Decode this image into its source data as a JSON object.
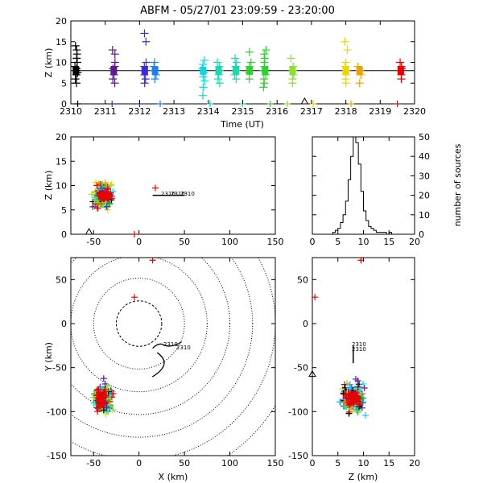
{
  "title": "ABFM - 05/27/01 23:09:59 - 23:20:00",
  "colors": {
    "rainbow": [
      "#000000",
      "#5a1a8c",
      "#3a2ad8",
      "#1e7ff0",
      "#11d6e0",
      "#18dcb0",
      "#2ad42a",
      "#8ce030",
      "#e8d800",
      "#f2a000",
      "#e80000"
    ]
  },
  "chart_data": [
    {
      "id": "timeseries",
      "type": "scatter",
      "xlabel": "Time (UT)",
      "ylabel": "Z (km)",
      "xlim": [
        2310,
        2320
      ],
      "ylim": [
        0,
        20
      ],
      "xticks": [
        "2310",
        "2311",
        "2312",
        "2313",
        "2314",
        "2315",
        "2316",
        "2317",
        "2318",
        "2319",
        "2320"
      ],
      "yticks": [
        "0",
        "5",
        "10",
        "15",
        "20"
      ],
      "reference_line_z": 8,
      "triangle_marker_time": 2316.8,
      "groups": [
        {
          "t": 2310.15,
          "z": [
            5,
            6,
            7,
            7.5,
            8,
            8.5,
            9,
            10,
            11,
            12,
            13,
            14
          ],
          "color_index": 0
        },
        {
          "t": 2311.25,
          "z": [
            5,
            6,
            7,
            8,
            8.5,
            9,
            10,
            12,
            13
          ],
          "color_index": 1
        },
        {
          "t": 2312.15,
          "z": [
            5,
            6,
            7,
            8,
            9,
            10,
            15,
            17
          ],
          "color_index": 2
        },
        {
          "t": 2312.45,
          "z": [
            6,
            7,
            8,
            9,
            10
          ],
          "color_index": 3
        },
        {
          "t": 2313.85,
          "z": [
            2,
            4,
            5.5,
            6.5,
            7.5,
            8.5,
            9.5,
            10.5
          ],
          "color_index": 4
        },
        {
          "t": 2314.3,
          "z": [
            5,
            6,
            7,
            8,
            9,
            10
          ],
          "color_index": 5
        },
        {
          "t": 2314.8,
          "z": [
            6,
            7,
            8,
            9,
            10,
            11
          ],
          "color_index": 5
        },
        {
          "t": 2315.2,
          "z": [
            6,
            7.5,
            9,
            10,
            12.5
          ],
          "color_index": 6
        },
        {
          "t": 2315.65,
          "z": [
            4,
            5,
            6,
            7,
            8,
            9,
            10,
            11,
            12,
            13
          ],
          "color_index": 6
        },
        {
          "t": 2316.45,
          "z": [
            5,
            6,
            7,
            8,
            9,
            11
          ],
          "color_index": 7
        },
        {
          "t": 2318.0,
          "z": [
            5,
            6,
            7,
            8,
            9,
            10,
            13,
            15
          ],
          "color_index": 8
        },
        {
          "t": 2318.4,
          "z": [
            5,
            7,
            8,
            9
          ],
          "color_index": 9
        },
        {
          "t": 2319.6,
          "z": [
            6,
            7,
            8,
            8.5,
            9,
            10
          ],
          "color_index": 10
        }
      ],
      "ground_markers": [
        {
          "t": 2310.2,
          "color_index": 0
        },
        {
          "t": 2311.2,
          "color_index": 1
        },
        {
          "t": 2312.0,
          "color_index": 2
        },
        {
          "t": 2312.6,
          "color_index": 3
        },
        {
          "t": 2314.05,
          "color_index": 4
        },
        {
          "t": 2315.0,
          "color_index": 5
        },
        {
          "t": 2315.8,
          "color_index": 6
        },
        {
          "t": 2316.3,
          "color_index": 7
        },
        {
          "t": 2317.05,
          "color_index": 8
        },
        {
          "t": 2318.15,
          "color_index": 9
        },
        {
          "t": 2319.5,
          "color_index": 10
        }
      ]
    },
    {
      "id": "xz",
      "type": "scatter",
      "ylabel": "Z (km)",
      "xlim": [
        -75,
        150
      ],
      "ylim": [
        0,
        20
      ],
      "xticks": [
        "-50",
        "0",
        "50",
        "100",
        "150"
      ],
      "yticks": [
        "0",
        "5",
        "10",
        "15",
        "20"
      ],
      "station_track_labels": [
        "2310",
        "2310",
        "2310"
      ],
      "station_track": [
        [
          15,
          8
        ],
        [
          50,
          8
        ]
      ],
      "isolated_points": [
        {
          "x": 18,
          "z": 9.5,
          "color_index": 10
        },
        {
          "x": -5,
          "z": 0,
          "color_index": 10
        }
      ],
      "triangle_marker_x": -55
    },
    {
      "id": "histogram",
      "type": "bar",
      "ylabel": "number of sources",
      "xlim": [
        0,
        20
      ],
      "ylim": [
        0,
        50
      ],
      "xticks": [
        "0",
        "5",
        "10",
        "15",
        "20"
      ],
      "yticks": [
        "0",
        "10",
        "20",
        "30",
        "40",
        "50"
      ],
      "bin_width": 0.5,
      "bin_start": 0,
      "counts": [
        0,
        0,
        0,
        0,
        0,
        0,
        0,
        0,
        1,
        2,
        3,
        6,
        10,
        17,
        28,
        40,
        50,
        47,
        36,
        22,
        12,
        7,
        4,
        3,
        2,
        1,
        1,
        1,
        1,
        0,
        1,
        0,
        0,
        0,
        0,
        0,
        0,
        0,
        0,
        0
      ]
    },
    {
      "id": "xy",
      "type": "scatter",
      "xlabel": "X (km)",
      "ylabel": "Y (km)",
      "xlim": [
        -75,
        150
      ],
      "ylim": [
        -150,
        75
      ],
      "xticks": [
        "-50",
        "0",
        "50",
        "100",
        "150"
      ],
      "yticks": [
        "-150",
        "-100",
        "-50",
        "0",
        "50"
      ],
      "range_rings_km": [
        25,
        50,
        75,
        100,
        125,
        150,
        175
      ],
      "track_labels": [
        "2310",
        "2310"
      ],
      "isolated_points": [
        {
          "x": 15,
          "y": 72,
          "color_index": 10
        },
        {
          "x": -5,
          "y": 30,
          "color_index": 10
        }
      ]
    },
    {
      "id": "zy",
      "type": "scatter",
      "xlabel": "Z (km)",
      "xlim": [
        0,
        20
      ],
      "ylim": [
        -150,
        75
      ],
      "xticks": [
        "0",
        "5",
        "10",
        "15",
        "20"
      ],
      "yticks": [
        "-150",
        "-100",
        "-50",
        "0",
        "50"
      ],
      "track_labels": [
        "2310",
        "2310"
      ],
      "triangle_marker_y": -60,
      "isolated_points": [
        {
          "z": 9.5,
          "y": 72,
          "color_index": 10
        },
        {
          "z": 0.5,
          "y": 30,
          "color_index": 10
        }
      ]
    }
  ]
}
